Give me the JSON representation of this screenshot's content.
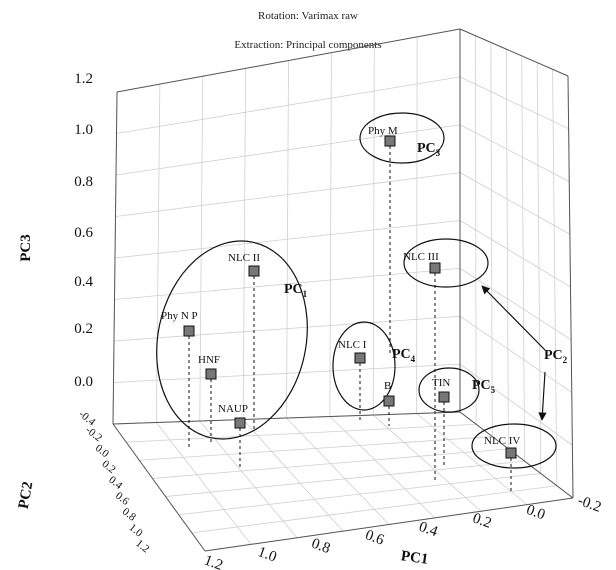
{
  "chart_data": {
    "type": "scatter",
    "subtype": "3d-scatter",
    "title_lines": [
      "Rotation: Varimax raw",
      "Extraction: Principal components"
    ],
    "axes": {
      "x": {
        "label": "PC1",
        "range": [
          -0.2,
          1.2
        ],
        "ticks": [
          "-0.2",
          "0.0",
          "0.2",
          "0.4",
          "0.6",
          "0.8",
          "1.0",
          "1.2"
        ]
      },
      "y": {
        "label": "PC2",
        "range": [
          -0.4,
          1.2
        ],
        "ticks": [
          "-0.4",
          "-0.2",
          "0.0",
          "0.2",
          "0.4",
          "0.6",
          "0.8",
          "1.0",
          "1.2"
        ]
      },
      "z": {
        "label": "PC3",
        "range": [
          -0.2,
          1.2
        ],
        "ticks": [
          "0.0",
          "0.2",
          "0.4",
          "0.6",
          "0.8",
          "1.0",
          "1.2"
        ]
      }
    },
    "grid": true,
    "points": [
      {
        "label": "Phy M",
        "pc3": 0.95
      },
      {
        "label": "NLC III",
        "pc3": 0.43
      },
      {
        "label": "NLC II",
        "pc3": 0.42
      },
      {
        "label": "Phy N P",
        "pc3": 0.18
      },
      {
        "label": "NLC I",
        "pc3": 0.07
      },
      {
        "label": "HNF",
        "pc3": 0.02
      },
      {
        "label": "B",
        "pc3": -0.08
      },
      {
        "label": "TIN",
        "pc3": -0.08
      },
      {
        "label": "NAUP",
        "pc3": -0.17
      },
      {
        "label": "NLC IV",
        "pc3": -0.28
      }
    ],
    "groups": [
      {
        "name": "PC",
        "sub": "1",
        "members": [
          "NLC II",
          "Phy N P",
          "HNF",
          "NAUP"
        ]
      },
      {
        "name": "PC",
        "sub": "2",
        "members": [
          "NLC III",
          "NLC IV"
        ]
      },
      {
        "name": "PC",
        "sub": "3",
        "members": [
          "Phy M"
        ]
      },
      {
        "name": "PC",
        "sub": "4",
        "members": [
          "NLC I",
          "B"
        ]
      },
      {
        "name": "PC",
        "sub": "5",
        "members": [
          "TIN"
        ]
      }
    ]
  }
}
